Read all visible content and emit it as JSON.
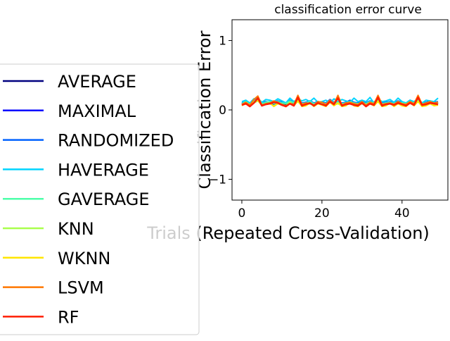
{
  "chart_data": {
    "type": "line",
    "title": "classification error curve",
    "xlabel": "Trials (Repeated Cross-Validation)",
    "ylabel": "Classification Error",
    "xlim": [
      -2.45,
      51.45
    ],
    "ylim": [
      -1.3,
      1.3
    ],
    "xticks": [
      0,
      20,
      40
    ],
    "yticks": [
      -1,
      0,
      1
    ],
    "grid": false,
    "legend_position": "left, partially overlapping the x-axis label",
    "x": [
      0,
      1,
      2,
      3,
      4,
      5,
      6,
      7,
      8,
      9,
      10,
      11,
      12,
      13,
      14,
      15,
      16,
      17,
      18,
      19,
      20,
      21,
      22,
      23,
      24,
      25,
      26,
      27,
      28,
      29,
      30,
      31,
      32,
      33,
      34,
      35,
      36,
      37,
      38,
      39,
      40,
      41,
      42,
      43,
      44,
      45,
      46,
      47,
      48,
      49
    ],
    "series": [
      {
        "name": "AVERAGE",
        "color": "#00007f",
        "values": [
          0.08,
          0.1,
          0.07,
          0.12,
          0.16,
          0.08,
          0.1,
          0.11,
          0.09,
          0.12,
          0.1,
          0.08,
          0.13,
          0.09,
          0.15,
          0.09,
          0.1,
          0.11,
          0.08,
          0.12,
          0.1,
          0.09,
          0.14,
          0.1,
          0.11,
          0.09,
          0.1,
          0.12,
          0.1,
          0.08,
          0.11,
          0.09,
          0.12,
          0.1,
          0.15,
          0.09,
          0.1,
          0.11,
          0.08,
          0.12,
          0.1,
          0.09,
          0.13,
          0.1,
          0.16,
          0.09,
          0.1,
          0.12,
          0.1,
          0.09
        ]
      },
      {
        "name": "MAXIMAL",
        "color": "#0000ff",
        "values": [
          0.09,
          0.11,
          0.08,
          0.13,
          0.15,
          0.09,
          0.11,
          0.12,
          0.08,
          0.11,
          0.1,
          0.09,
          0.12,
          0.1,
          0.14,
          0.1,
          0.09,
          0.12,
          0.09,
          0.11,
          0.1,
          0.08,
          0.13,
          0.11,
          0.1,
          0.1,
          0.09,
          0.13,
          0.1,
          0.09,
          0.12,
          0.08,
          0.11,
          0.1,
          0.14,
          0.1,
          0.09,
          0.12,
          0.09,
          0.11,
          0.1,
          0.08,
          0.12,
          0.11,
          0.15,
          0.1,
          0.09,
          0.11,
          0.1,
          0.1
        ]
      },
      {
        "name": "RANDOMIZED",
        "color": "#0062ff",
        "values": [
          0.1,
          0.12,
          0.09,
          0.14,
          0.16,
          0.1,
          0.12,
          0.11,
          0.1,
          0.13,
          0.11,
          0.1,
          0.14,
          0.11,
          0.15,
          0.1,
          0.11,
          0.13,
          0.1,
          0.12,
          0.11,
          0.1,
          0.15,
          0.11,
          0.12,
          0.1,
          0.11,
          0.14,
          0.11,
          0.1,
          0.12,
          0.1,
          0.13,
          0.11,
          0.16,
          0.1,
          0.11,
          0.12,
          0.1,
          0.13,
          0.11,
          0.1,
          0.14,
          0.11,
          0.17,
          0.1,
          0.11,
          0.13,
          0.11,
          0.12
        ]
      },
      {
        "name": "HAVERAGE",
        "color": "#00d4ff",
        "values": [
          0.12,
          0.14,
          0.1,
          0.16,
          0.17,
          0.11,
          0.15,
          0.14,
          0.12,
          0.16,
          0.13,
          0.1,
          0.17,
          0.12,
          0.16,
          0.13,
          0.15,
          0.12,
          0.17,
          0.11,
          0.12,
          0.14,
          0.1,
          0.16,
          0.12,
          0.15,
          0.13,
          0.11,
          0.17,
          0.12,
          0.14,
          0.12,
          0.18,
          0.1,
          0.16,
          0.12,
          0.13,
          0.15,
          0.11,
          0.17,
          0.12,
          0.1,
          0.14,
          0.12,
          0.16,
          0.1,
          0.14,
          0.13,
          0.12,
          0.17
        ]
      },
      {
        "name": "GAVERAGE",
        "color": "#4dffaa",
        "values": [
          0.09,
          0.12,
          0.08,
          0.13,
          0.15,
          0.09,
          0.11,
          0.12,
          0.09,
          0.12,
          0.1,
          0.09,
          0.13,
          0.1,
          0.14,
          0.09,
          0.1,
          0.12,
          0.09,
          0.11,
          0.1,
          0.09,
          0.13,
          0.1,
          0.11,
          0.09,
          0.1,
          0.12,
          0.1,
          0.09,
          0.11,
          0.09,
          0.12,
          0.1,
          0.14,
          0.09,
          0.1,
          0.11,
          0.09,
          0.12,
          0.1,
          0.09,
          0.12,
          0.1,
          0.15,
          0.09,
          0.1,
          0.12,
          0.1,
          0.1
        ]
      },
      {
        "name": "KNN",
        "color": "#aaff4d",
        "values": [
          0.07,
          0.09,
          0.06,
          0.1,
          0.13,
          0.07,
          0.08,
          0.09,
          0.06,
          0.1,
          0.08,
          0.06,
          0.11,
          0.07,
          0.12,
          0.06,
          0.07,
          0.09,
          0.06,
          0.1,
          0.08,
          0.06,
          0.12,
          0.07,
          0.09,
          0.06,
          0.07,
          0.1,
          0.07,
          0.06,
          0.09,
          0.06,
          0.1,
          0.07,
          0.13,
          0.06,
          0.07,
          0.09,
          0.06,
          0.1,
          0.07,
          0.06,
          0.11,
          0.07,
          0.13,
          0.06,
          0.07,
          0.1,
          0.07,
          0.08
        ]
      },
      {
        "name": "WKNN",
        "color": "#ffe600",
        "values": [
          0.06,
          0.1,
          0.05,
          0.11,
          0.14,
          0.06,
          0.09,
          0.1,
          0.05,
          0.09,
          0.07,
          0.05,
          0.1,
          0.06,
          0.13,
          0.05,
          0.06,
          0.1,
          0.05,
          0.09,
          0.07,
          0.05,
          0.11,
          0.06,
          0.1,
          0.05,
          0.06,
          0.11,
          0.06,
          0.05,
          0.1,
          0.05,
          0.09,
          0.06,
          0.12,
          0.05,
          0.06,
          0.1,
          0.05,
          0.09,
          0.06,
          0.05,
          0.1,
          0.06,
          0.12,
          0.05,
          0.06,
          0.09,
          0.06,
          0.07
        ]
      },
      {
        "name": "LSVM",
        "color": "#ff7700",
        "values": [
          0.08,
          0.11,
          0.07,
          0.15,
          0.2,
          0.07,
          0.09,
          0.1,
          0.13,
          0.11,
          0.08,
          0.06,
          0.09,
          0.08,
          0.21,
          0.08,
          0.1,
          0.09,
          0.07,
          0.12,
          0.11,
          0.08,
          0.14,
          0.09,
          0.21,
          0.07,
          0.1,
          0.11,
          0.09,
          0.08,
          0.12,
          0.07,
          0.11,
          0.09,
          0.21,
          0.08,
          0.09,
          0.1,
          0.08,
          0.12,
          0.09,
          0.08,
          0.12,
          0.09,
          0.21,
          0.08,
          0.1,
          0.12,
          0.1,
          0.11
        ]
      },
      {
        "name": "RF",
        "color": "#ff1e00",
        "values": [
          0.07,
          0.09,
          0.05,
          0.1,
          0.17,
          0.06,
          0.08,
          0.09,
          0.11,
          0.1,
          0.07,
          0.05,
          0.09,
          0.06,
          0.18,
          0.06,
          0.08,
          0.1,
          0.06,
          0.1,
          0.08,
          0.06,
          0.12,
          0.08,
          0.17,
          0.06,
          0.08,
          0.09,
          0.07,
          0.06,
          0.1,
          0.05,
          0.09,
          0.07,
          0.18,
          0.06,
          0.08,
          0.09,
          0.07,
          0.1,
          0.08,
          0.06,
          0.1,
          0.07,
          0.18,
          0.07,
          0.08,
          0.1,
          0.09,
          0.08
        ]
      }
    ]
  }
}
